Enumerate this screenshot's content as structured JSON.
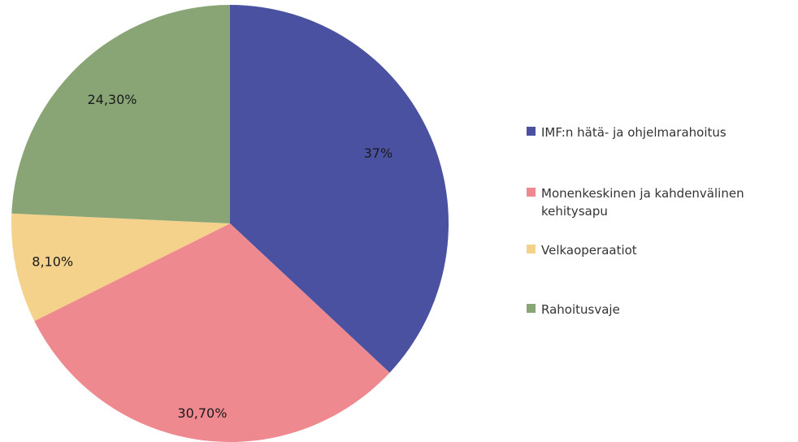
{
  "chart_data": {
    "type": "pie",
    "title": "",
    "start_angle_deg": 0,
    "direction": "clockwise",
    "slices": [
      {
        "label": "IMF:n hätä- ja ohjelmarahoitus",
        "value": 37,
        "display": "37%",
        "color": "#4a51a0"
      },
      {
        "label": "Monenkeskinen ja kahdenvälinen kehitysapu",
        "value": 30.7,
        "display": "30,70%",
        "color": "#ee8a8f"
      },
      {
        "label": "Velkaoperaatiot",
        "value": 8.1,
        "display": "8,10%",
        "color": "#f4d28c"
      },
      {
        "label": "Rahoitusvaje",
        "value": 24.3,
        "display": "24,30%",
        "color": "#89a576"
      }
    ],
    "legend_position": "right"
  }
}
